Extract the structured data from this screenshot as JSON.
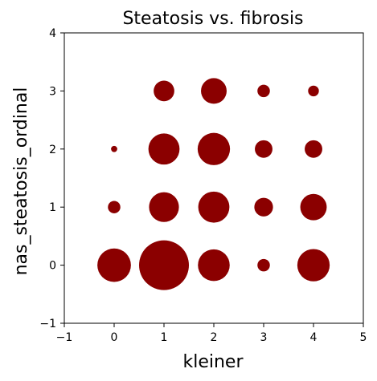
{
  "chart_data": {
    "type": "scatter",
    "title": "Steatosis vs. fibrosis",
    "xlabel": "kleiner",
    "ylabel": "nas_steatosis_ordinal",
    "xlim": [
      -1,
      5
    ],
    "ylim": [
      -1,
      4
    ],
    "xticks": [
      -1,
      0,
      1,
      2,
      3,
      4,
      5
    ],
    "yticks": [
      -1,
      0,
      1,
      2,
      3,
      4
    ],
    "grid": false,
    "legend": "none",
    "marker_color": "#8b0000",
    "size_encoding": "relative count (point area)",
    "points": [
      {
        "x": 0,
        "y": 0,
        "size": 29
      },
      {
        "x": 1,
        "y": 0,
        "size": 64
      },
      {
        "x": 2,
        "y": 0,
        "size": 26
      },
      {
        "x": 3,
        "y": 0,
        "size": 4
      },
      {
        "x": 4,
        "y": 0,
        "size": 27
      },
      {
        "x": 0,
        "y": 1,
        "size": 4
      },
      {
        "x": 1,
        "y": 1,
        "size": 23
      },
      {
        "x": 2,
        "y": 1,
        "size": 25
      },
      {
        "x": 3,
        "y": 1,
        "size": 9
      },
      {
        "x": 4,
        "y": 1,
        "size": 18
      },
      {
        "x": 0,
        "y": 2,
        "size": 1
      },
      {
        "x": 1,
        "y": 2,
        "size": 25
      },
      {
        "x": 2,
        "y": 2,
        "size": 27
      },
      {
        "x": 3,
        "y": 2,
        "size": 8
      },
      {
        "x": 4,
        "y": 2,
        "size": 8
      },
      {
        "x": 1,
        "y": 3,
        "size": 11
      },
      {
        "x": 2,
        "y": 3,
        "size": 17
      },
      {
        "x": 3,
        "y": 3,
        "size": 4
      },
      {
        "x": 4,
        "y": 3,
        "size": 3
      }
    ]
  }
}
